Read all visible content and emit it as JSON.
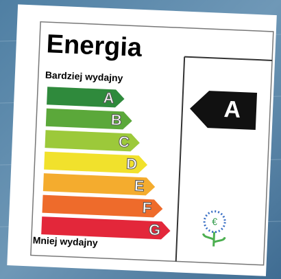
{
  "label": {
    "title": "Energia",
    "top_text": "Bardziej wydajny",
    "bottom_text": "Mniej wydajny",
    "rating": "A",
    "classes": [
      {
        "letter": "A",
        "color": "#2f8a3c"
      },
      {
        "letter": "B",
        "color": "#5ba83a"
      },
      {
        "letter": "C",
        "color": "#9cc93a"
      },
      {
        "letter": "D",
        "color": "#f1e12c"
      },
      {
        "letter": "E",
        "color": "#f4ac2e"
      },
      {
        "letter": "F",
        "color": "#ee6b2b"
      },
      {
        "letter": "G",
        "color": "#e3273a"
      }
    ]
  }
}
